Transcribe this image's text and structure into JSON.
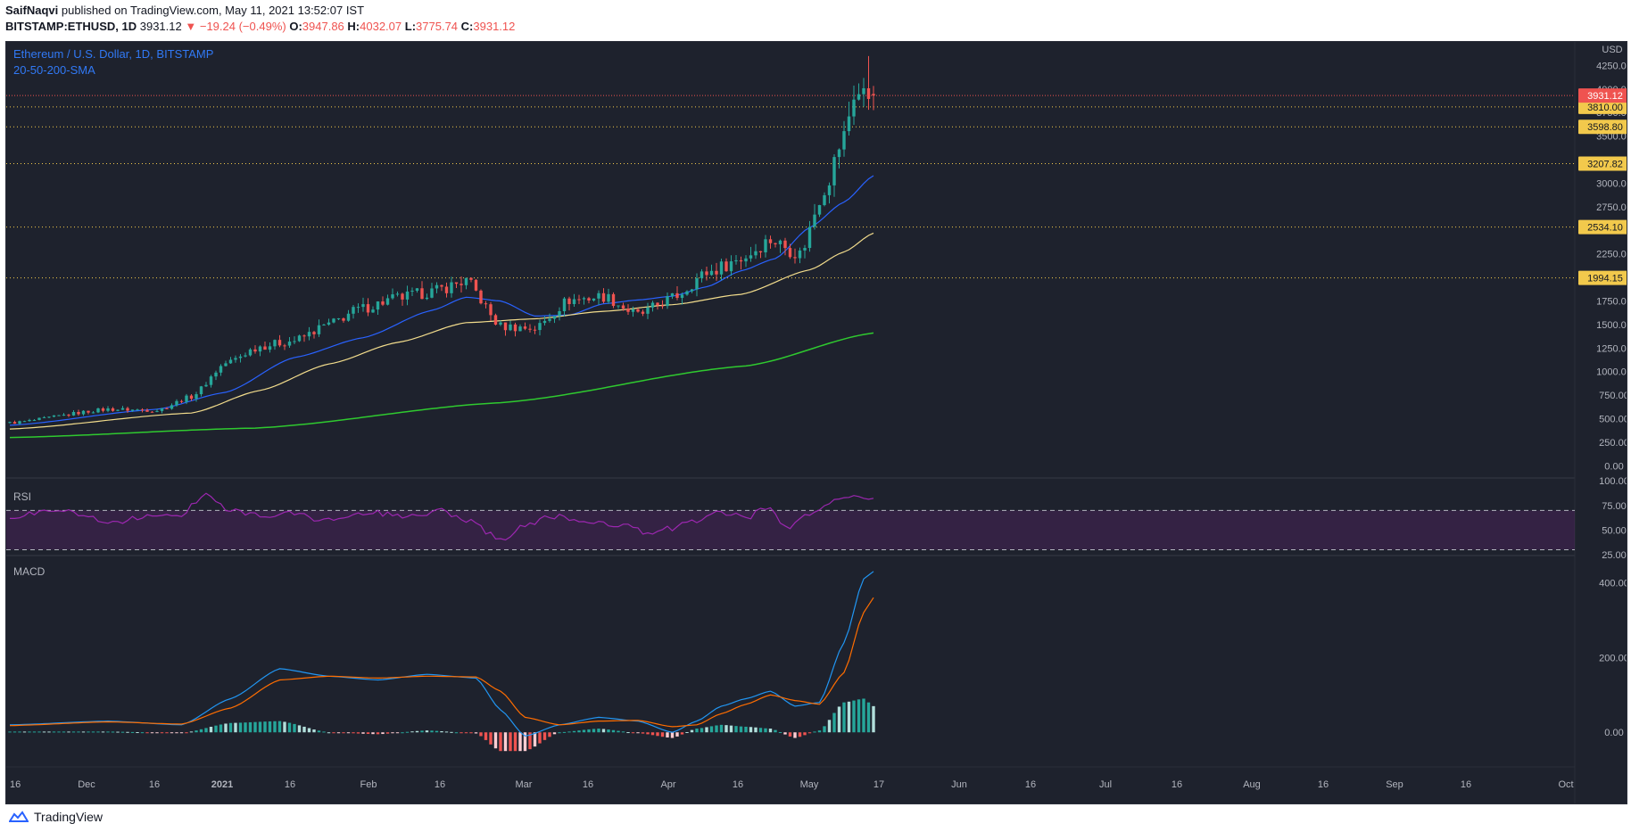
{
  "header": {
    "author": "SaifNaqvi",
    "published_text": " published on TradingView.com, May 11, 2021 13:52:07 IST",
    "symbol": "BITSTAMP:ETHUSD, 1D",
    "last": "3931.12",
    "change": "−19.24 (−0.49%)",
    "o_label": "O:",
    "o": "3947.86",
    "h_label": "H:",
    "h": "4032.07",
    "l_label": "L:",
    "l": "3775.74",
    "c_label": "C:",
    "c": "3931.12"
  },
  "legend": {
    "title": "Ethereum / U.S. Dollar, 1D, BITSTAMP",
    "indicator": "20-50-200-SMA"
  },
  "panes": {
    "rsi": "RSI",
    "macd": "MACD"
  },
  "footer": {
    "brand": "TradingView"
  },
  "colors": {
    "bg": "#1e222d",
    "up": "#26a69a",
    "down": "#ef5350",
    "sma20": "#2962ff",
    "sma50": "#f2dc8c",
    "sma200": "#2fc92f",
    "rsi": "#9c27b0",
    "macd": "#2196f3",
    "signal": "#ff6d00",
    "hline": "#f2c94c",
    "last": "#ef5350"
  },
  "chart_data": [
    {
      "type": "candlestick",
      "title": "Ethereum / U.S. Dollar, 1D, BITSTAMP",
      "y_axis_unit": "USD",
      "y_ticks": [
        0,
        250,
        500,
        750,
        1000,
        1250,
        1500,
        1750,
        2000,
        2250,
        2500,
        2750,
        3000,
        3250,
        3500,
        3750,
        4000,
        4250
      ],
      "y_tick_labels": [
        "0.00",
        "250.00",
        "500.00",
        "750.00",
        "1000.00",
        "1250.00",
        "1500.00",
        "1750.00",
        "2000.00",
        "2250.00",
        "2500.00",
        "2750.00",
        "3000.00",
        "3250.00",
        "3500.00",
        "3750.00",
        "4000.00",
        "4250.00"
      ],
      "ylim": [
        -120,
        4500
      ],
      "x_tick_labels": [
        "16",
        "Dec",
        "16",
        "2021",
        "16",
        "Feb",
        "16",
        "Mar",
        "16",
        "Apr",
        "16",
        "May",
        "17",
        "Jun",
        "16",
        "Jul",
        "16",
        "Aug",
        "16",
        "Sep",
        "16",
        "Oct"
      ],
      "horizontal_levels": [
        {
          "value": 3810.0,
          "label": "3810.00"
        },
        {
          "value": 3598.8,
          "label": "3598.80"
        },
        {
          "value": 3207.82,
          "label": "3207.82"
        },
        {
          "value": 2534.1,
          "label": "2534.10"
        },
        {
          "value": 1994.15,
          "label": "1994.15"
        }
      ],
      "last_price": {
        "value": 3931.12,
        "label": "3931.12"
      },
      "series": [
        {
          "name": "ETHUSD close",
          "anchor_days": [
            0,
            20,
            30,
            37,
            44,
            51,
            58,
            65,
            71,
            79,
            86,
            93,
            100,
            107,
            114,
            121,
            128,
            135,
            142,
            149,
            155,
            161,
            166,
            170,
            172,
            176
          ],
          "anchor_values": [
            455,
            600,
            590,
            735,
            1090,
            1270,
            1330,
            1500,
            1660,
            1780,
            1850,
            1960,
            1480,
            1460,
            1760,
            1800,
            1600,
            1780,
            2050,
            2200,
            2400,
            2250,
            2950,
            3500,
            3950,
            3931
          ]
        },
        {
          "name": "SMA 20",
          "anchor_days": [
            0,
            30,
            44,
            58,
            72,
            86,
            93,
            100,
            107,
            114,
            121,
            128,
            135,
            142,
            149,
            156,
            163,
            170,
            176
          ],
          "anchor_values": [
            430,
            600,
            780,
            1150,
            1360,
            1650,
            1790,
            1750,
            1590,
            1600,
            1720,
            1760,
            1800,
            1900,
            2070,
            2200,
            2530,
            2800,
            3080
          ]
        },
        {
          "name": "SMA 50",
          "anchor_days": [
            0,
            37,
            51,
            65,
            79,
            93,
            107,
            121,
            135,
            149,
            163,
            170,
            176
          ],
          "anchor_values": [
            390,
            560,
            800,
            1080,
            1310,
            1520,
            1560,
            1640,
            1710,
            1820,
            2080,
            2270,
            2470
          ]
        },
        {
          "name": "SMA 200",
          "anchor_days": [
            0,
            50,
            100,
            150,
            176
          ],
          "anchor_values": [
            300,
            400,
            670,
            1060,
            1410
          ]
        }
      ]
    },
    {
      "type": "line",
      "title": "RSI",
      "y_ticks": [
        25,
        50,
        75,
        100
      ],
      "y_tick_labels": [
        "25.00",
        "50.00",
        "75.00",
        "100.00"
      ],
      "ylim": [
        25,
        102
      ],
      "band": [
        30,
        70
      ],
      "series": [
        {
          "name": "RSI",
          "anchor_days": [
            0,
            10,
            20,
            28,
            35,
            40,
            45,
            52,
            58,
            63,
            68,
            75,
            82,
            88,
            94,
            98,
            101,
            104,
            107,
            110,
            115,
            120,
            125,
            130,
            135,
            140,
            145,
            150,
            155,
            158,
            162,
            165,
            168,
            171,
            174,
            176
          ],
          "anchor_values": [
            62,
            72,
            58,
            63,
            66,
            88,
            70,
            64,
            67,
            60,
            63,
            67,
            63,
            70,
            58,
            45,
            40,
            52,
            58,
            65,
            60,
            58,
            55,
            46,
            52,
            60,
            68,
            62,
            75,
            52,
            63,
            70,
            82,
            84,
            80,
            80
          ]
        }
      ]
    },
    {
      "type": "line",
      "title": "MACD",
      "y_ticks": [
        0,
        200,
        400
      ],
      "y_tick_labels": [
        "0.00",
        "200.00",
        "400.00"
      ],
      "ylim": [
        -90,
        470
      ],
      "series": [
        {
          "name": "MACD",
          "anchor_days": [
            0,
            20,
            35,
            45,
            55,
            65,
            75,
            85,
            95,
            100,
            105,
            112,
            120,
            128,
            135,
            140,
            145,
            150,
            155,
            160,
            165,
            170,
            174,
            176
          ],
          "anchor_values": [
            20,
            30,
            20,
            90,
            170,
            150,
            140,
            155,
            145,
            60,
            -10,
            20,
            40,
            30,
            0,
            30,
            70,
            90,
            110,
            70,
            80,
            240,
            410,
            430
          ]
        },
        {
          "name": "Signal",
          "anchor_days": [
            0,
            20,
            35,
            45,
            55,
            65,
            75,
            85,
            95,
            100,
            105,
            112,
            120,
            128,
            135,
            140,
            145,
            150,
            155,
            160,
            165,
            170,
            174,
            176
          ],
          "anchor_values": [
            18,
            28,
            22,
            65,
            140,
            150,
            145,
            150,
            148,
            110,
            40,
            20,
            30,
            32,
            15,
            20,
            50,
            75,
            100,
            85,
            75,
            160,
            320,
            360
          ]
        }
      ]
    }
  ]
}
